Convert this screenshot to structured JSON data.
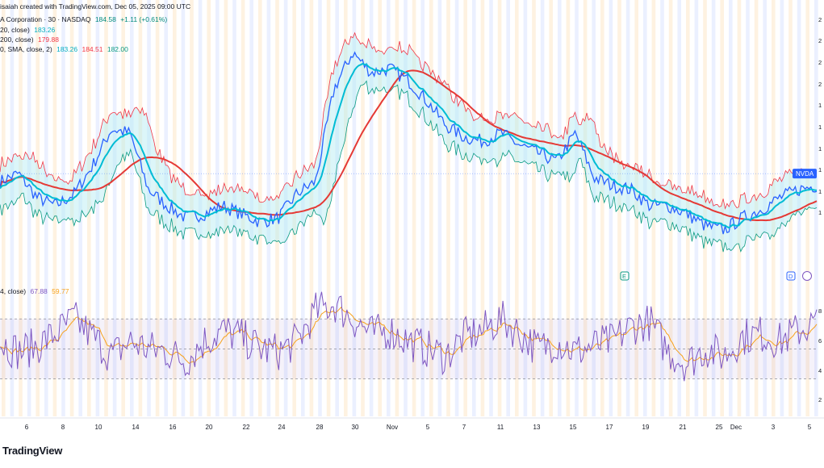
{
  "header": {
    "title": "isaiah created with TradingView.com, Dec 05, 2025 09:00 UTC",
    "symbol_line": "A Corporation · 30 · NASDAQ",
    "price": "184.58",
    "change": "+1.11 (+0.61%)",
    "ind1_label": "20, close)",
    "ind1_value": "183.26",
    "ind2_label": "200, close)",
    "ind2_value": "179.88",
    "ind3_label": "0, SMA, close, 2)",
    "ind3_v1": "183.26",
    "ind3_v2": "184.51",
    "ind3_v3": "182.00",
    "rsi_label": "4, close)",
    "rsi_v1": "67.88",
    "rsi_v2": "59.77",
    "symbol_tag": "NVDA",
    "event_e": "E",
    "event_d": "D",
    "brand": "TradingView"
  },
  "chart_data": {
    "type": "line",
    "x_ticks": [
      "6",
      "8",
      "10",
      "14",
      "16",
      "20",
      "22",
      "24",
      "28",
      "30",
      "Nov",
      "5",
      "7",
      "11",
      "13",
      "15",
      "17",
      "19",
      "21",
      "25",
      "Dec",
      "3",
      "5"
    ],
    "price_y_ticks": [
      "2",
      "2",
      "2",
      "2",
      "1",
      "1",
      "1",
      "1",
      "1",
      "1"
    ],
    "rsi_y_ticks": [
      "8",
      "6",
      "4",
      "2"
    ],
    "price_series_approx": [
      186,
      188,
      182,
      180,
      183,
      190,
      199,
      198,
      184,
      180,
      177,
      178,
      180,
      178,
      176,
      177,
      183,
      186,
      209,
      218,
      213,
      214,
      211,
      206,
      200,
      197,
      196,
      198,
      195,
      193,
      191,
      198,
      187,
      185,
      184,
      180,
      180,
      178,
      175,
      174,
      177,
      179,
      182,
      184,
      185
    ],
    "rsi_series_approx": [
      55,
      48,
      52,
      60,
      70,
      58,
      45,
      55,
      50,
      48,
      42,
      55,
      62,
      58,
      50,
      48,
      55,
      75,
      80,
      70,
      60,
      62,
      55,
      50,
      45,
      58,
      62,
      70,
      60,
      50,
      55,
      48,
      52,
      55,
      65,
      68,
      48,
      40,
      50,
      45,
      58,
      60,
      55,
      62,
      68
    ],
    "rsi_levels": [
      70,
      50,
      30
    ],
    "grid": false
  },
  "colors": {
    "price": "#2962ff",
    "ema_fast": "#00bcd4",
    "ma_slow": "#e53935",
    "band_upper": "#f23645",
    "band_lower": "#089981",
    "rsi": "#7e57c2",
    "rsi_ma": "#f7a21b",
    "bg_stripe_a": "#fde7c8",
    "bg_stripe_b": "#dbe4ff"
  }
}
